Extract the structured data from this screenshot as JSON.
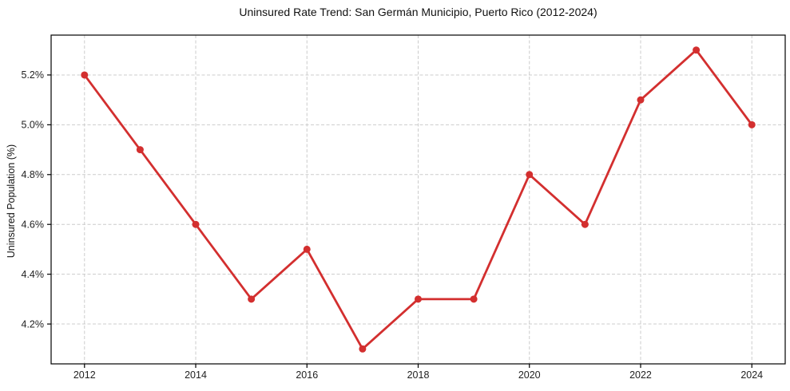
{
  "chart_data": {
    "type": "line",
    "title": "Uninsured Rate Trend: San Germán Municipio, Puerto Rico (2012-2024)",
    "xlabel": "",
    "ylabel": "Uninsured Population (%)",
    "x": [
      2012,
      2013,
      2014,
      2015,
      2016,
      2017,
      2018,
      2019,
      2020,
      2021,
      2022,
      2023,
      2024
    ],
    "values": [
      5.2,
      4.9,
      4.6,
      4.3,
      4.5,
      4.1,
      4.3,
      4.3,
      4.8,
      4.6,
      5.1,
      5.3,
      5.0
    ],
    "xticks": [
      2012,
      2014,
      2016,
      2018,
      2020,
      2022,
      2024
    ],
    "yticks": [
      4.2,
      4.4,
      4.6,
      4.8,
      5.0,
      5.2
    ],
    "ytick_labels": [
      "4.2%",
      "4.4%",
      "4.6%",
      "4.8%",
      "5.0%",
      "5.2%"
    ],
    "xtick_labels": [
      "2012",
      "2014",
      "2016",
      "2018",
      "2020",
      "2022",
      "2024"
    ],
    "xlim": [
      2011.4,
      2024.6
    ],
    "ylim": [
      4.04,
      5.36
    ],
    "grid": {
      "visible": true,
      "style": "dashed",
      "color": "#cccccc"
    },
    "line_color": "#d32f2f",
    "marker": "circle",
    "marker_color": "#d32f2f",
    "spine_color": "#000000",
    "tick_label_color": "#222222",
    "background": "#ffffff",
    "legend": null
  }
}
